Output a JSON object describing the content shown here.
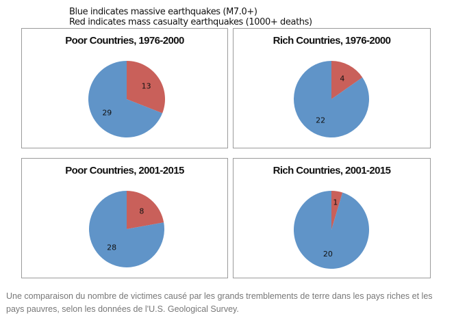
{
  "legend": {
    "line1": "Blue indicates massive earthquakes (M7.0+)",
    "line2": "Red indicates mass casualty earthquakes (1000+ deaths)"
  },
  "colors": {
    "blue": "#6094c8",
    "red": "#c9605a"
  },
  "chart_data": [
    {
      "type": "pie",
      "title": "Poor Countries, 1976-2000",
      "slices": [
        {
          "label": "13",
          "value": 13,
          "color": "red"
        },
        {
          "label": "29",
          "value": 29,
          "color": "blue"
        }
      ]
    },
    {
      "type": "pie",
      "title": "Rich Countries, 1976-2000",
      "slices": [
        {
          "label": "4",
          "value": 4,
          "color": "red"
        },
        {
          "label": "22",
          "value": 22,
          "color": "blue"
        }
      ]
    },
    {
      "type": "pie",
      "title": "Poor Countries, 2001-2015",
      "slices": [
        {
          "label": "8",
          "value": 8,
          "color": "red"
        },
        {
          "label": "28",
          "value": 28,
          "color": "blue"
        }
      ]
    },
    {
      "type": "pie",
      "title": "Rich Countries, 2001-2015",
      "slices": [
        {
          "label": "1",
          "value": 1,
          "color": "red"
        },
        {
          "label": "20",
          "value": 20,
          "color": "blue"
        }
      ]
    }
  ],
  "caption": "Une comparaison du nombre de victimes causé par les grands tremblements de terre dans les pays riches et les pays pauvres, selon les données de l'U.S. Geological Survey."
}
